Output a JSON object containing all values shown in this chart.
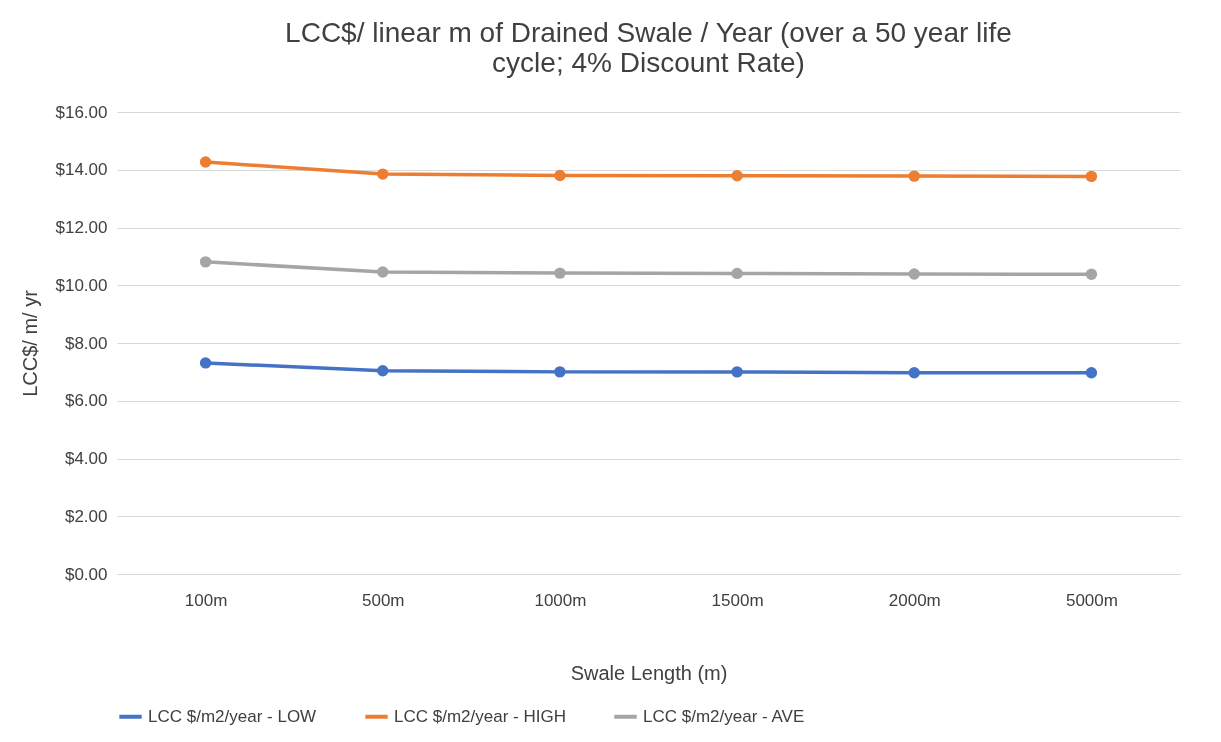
{
  "chart_data": {
    "type": "line",
    "title": "LCC$/ linear m of Drained Swale / Year (over a 50 year life cycle; 4% Discount Rate)",
    "xlabel": "Swale Length (m)",
    "ylabel": "LCC$/ m/ yr",
    "categories": [
      "100m",
      "500m",
      "1000m",
      "1500m",
      "2000m",
      "5000m"
    ],
    "series": [
      {
        "name": "LCC $/m2/year - LOW",
        "color": "#4472c4",
        "values": [
          7.31,
          7.04,
          7.0,
          7.0,
          6.97,
          6.97
        ]
      },
      {
        "name": "LCC $/m2/year - HIGH",
        "color": "#ed7d31",
        "values": [
          14.27,
          13.85,
          13.8,
          13.79,
          13.78,
          13.77
        ]
      },
      {
        "name": "LCC $/m2/year - AVE",
        "color": "#a5a5a5",
        "values": [
          10.81,
          10.46,
          10.42,
          10.41,
          10.39,
          10.38
        ]
      }
    ],
    "ylim": [
      0,
      16
    ],
    "yticks": [
      {
        "value": 0,
        "label": "$0.00"
      },
      {
        "value": 2,
        "label": "$2.00"
      },
      {
        "value": 4,
        "label": "$4.00"
      },
      {
        "value": 6,
        "label": "$6.00"
      },
      {
        "value": 8,
        "label": "$8.00"
      },
      {
        "value": 10,
        "label": "$10.00"
      },
      {
        "value": 12,
        "label": "$12.00"
      },
      {
        "value": 14,
        "label": "$14.00"
      },
      {
        "value": 16,
        "label": "$16.00"
      }
    ],
    "grid": "y",
    "legend": "bottom",
    "marker": "circle",
    "line_style": "solid"
  }
}
